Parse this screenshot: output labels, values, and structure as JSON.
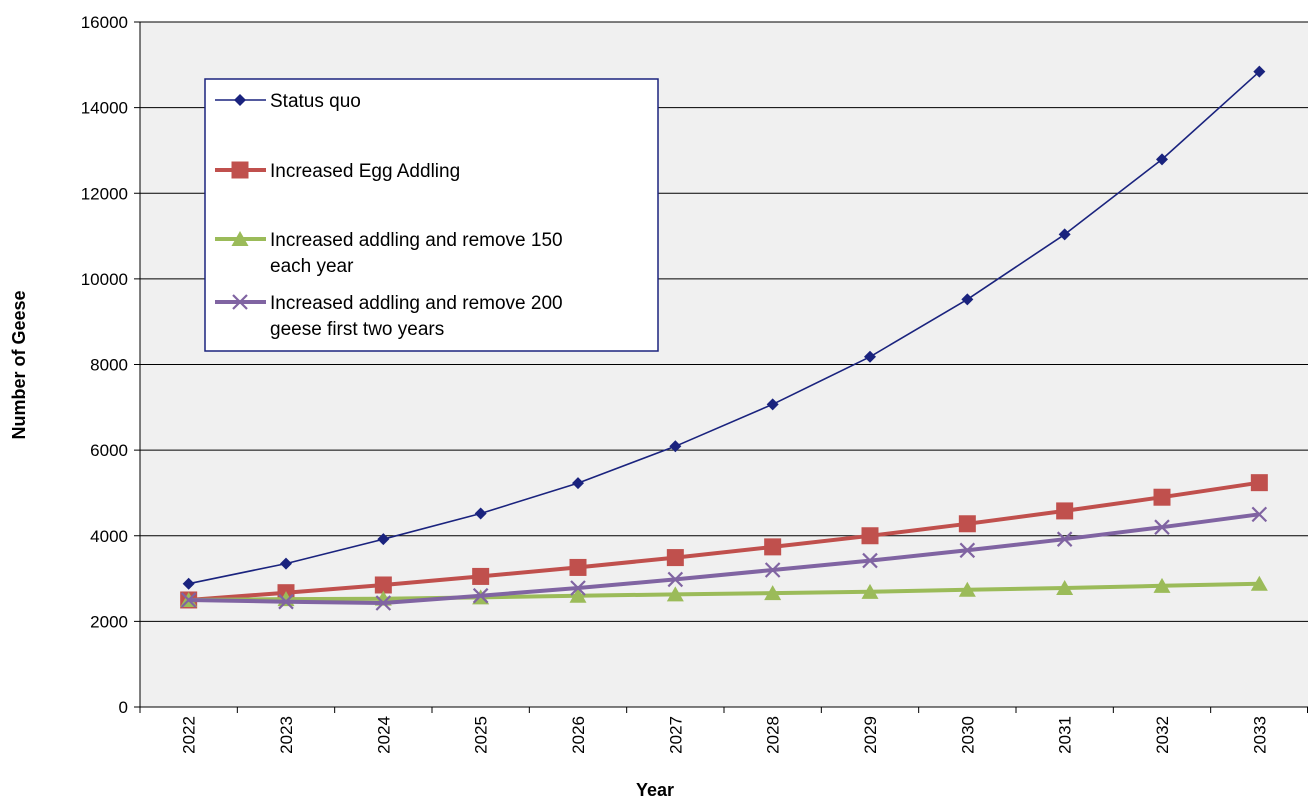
{
  "chart_data": {
    "type": "line",
    "title": "",
    "xlabel": "Year",
    "ylabel": "Number of Geese",
    "ylim": [
      0,
      16000
    ],
    "yticks": [
      0,
      2000,
      4000,
      6000,
      8000,
      10000,
      12000,
      14000,
      16000
    ],
    "categories": [
      "2022",
      "2023",
      "2024",
      "2025",
      "2026",
      "2027",
      "2028",
      "2029",
      "2030",
      "2031",
      "2032",
      "2033"
    ],
    "grid": "horizontal",
    "legend_position": "top-left",
    "series": [
      {
        "name": "Status quo",
        "color": "#1a237e",
        "marker": "diamond",
        "values": [
          2880,
          3350,
          3920,
          4520,
          5230,
          6090,
          7070,
          8180,
          9520,
          11040,
          12790,
          14840
        ]
      },
      {
        "name": "Increased Egg Addling",
        "color": "#c0504d",
        "marker": "square",
        "values": [
          2500,
          2670,
          2850,
          3050,
          3260,
          3490,
          3740,
          4000,
          4280,
          4580,
          4900,
          5240
        ]
      },
      {
        "name": "Increased addling and remove 150 each year",
        "color": "#9bbb59",
        "marker": "triangle",
        "values": [
          2500,
          2520,
          2530,
          2560,
          2600,
          2630,
          2660,
          2690,
          2740,
          2780,
          2830,
          2880
        ]
      },
      {
        "name": "Increased addling and remove 200 geese first two years",
        "color": "#8064a2",
        "marker": "x",
        "values": [
          2500,
          2460,
          2430,
          2600,
          2780,
          2980,
          3200,
          3420,
          3660,
          3920,
          4200,
          4500
        ]
      }
    ]
  }
}
